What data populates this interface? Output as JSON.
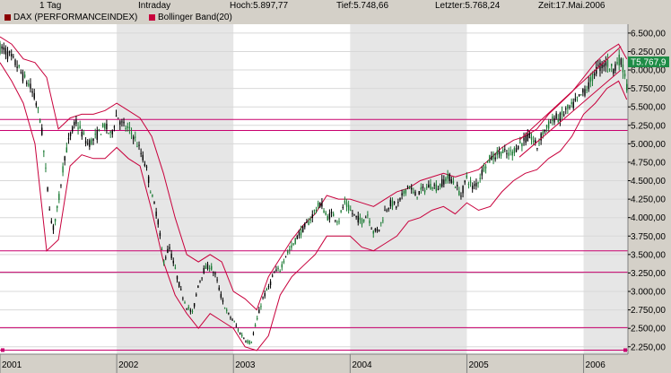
{
  "header": {
    "interval": "1 Tag",
    "mode": "Intraday",
    "high": "Hoch:5.897,77",
    "low": "Tief:5.748,66",
    "last": "Letzter:5.768,24",
    "time": "Zeit:17.Mai.2006"
  },
  "legend": {
    "series1": "DAX (PERFORMANCEINDEX)",
    "series1_color": "#8b0000",
    "series2": "Bollinger Band(20)",
    "series2_color": "#c8003c"
  },
  "price_tag": "T5.767,9",
  "colors": {
    "plot_bg": "#ffffff",
    "band_bg": "#e6e6e6",
    "candle_up": "#1a7a33",
    "candle_down": "#000000",
    "bollinger": "#c8003c",
    "support_line": "#c8006e",
    "price_tag_bg": "#1e8c46"
  },
  "chart_data": {
    "type": "line",
    "title": "",
    "y_ticks": [
      "6.500,00",
      "6.250,00",
      "6.000,00",
      "5.750,00",
      "5.500,00",
      "5.250,00",
      "5.000,00",
      "4.750,00",
      "4.500,00",
      "4.250,00",
      "4.000,00",
      "3.750,00",
      "3.500,00",
      "3.250,00",
      "3.000,00",
      "2.750,00",
      "2.500,00",
      "2.250,00"
    ],
    "y_tick_values": [
      6500,
      6250,
      6000,
      5750,
      5500,
      5250,
      5000,
      4750,
      4500,
      4250,
      4000,
      3750,
      3500,
      3250,
      3000,
      2750,
      2500,
      2250
    ],
    "ylim": [
      2150,
      6620
    ],
    "x_ticks": [
      "2001",
      "2002",
      "2003",
      "2004",
      "2005",
      "2006"
    ],
    "x_tick_values": [
      2001.0,
      2002.0,
      2003.0,
      2004.0,
      2005.0,
      2006.0
    ],
    "xlim": [
      2001.0,
      2006.38
    ],
    "shaded_years": [
      [
        2002.0,
        2003.0
      ],
      [
        2004.0,
        2005.0
      ],
      [
        2006.0,
        2006.38
      ]
    ],
    "horizontal_lines": [
      5330,
      5180,
      3550,
      3260,
      2510,
      2205
    ],
    "trend_lines": [
      {
        "x": [
          2005.45,
          2006.32
        ],
        "y": [
          5050,
          6320
        ]
      },
      {
        "x": [
          2005.45,
          2006.32
        ],
        "y": [
          4820,
          6000
        ]
      }
    ],
    "series": [
      {
        "name": "DAX (PERFORMANCEINDEX)",
        "x": [
          2001.0,
          2001.05,
          2001.1,
          2001.15,
          2001.2,
          2001.25,
          2001.3,
          2001.35,
          2001.4,
          2001.45,
          2001.5,
          2001.55,
          2001.6,
          2001.65,
          2001.7,
          2001.75,
          2001.8,
          2001.85,
          2001.9,
          2001.95,
          2002.0,
          2002.05,
          2002.1,
          2002.15,
          2002.2,
          2002.25,
          2002.3,
          2002.35,
          2002.4,
          2002.45,
          2002.5,
          2002.55,
          2002.6,
          2002.65,
          2002.7,
          2002.75,
          2002.8,
          2002.85,
          2002.9,
          2002.95,
          2003.0,
          2003.05,
          2003.1,
          2003.15,
          2003.2,
          2003.25,
          2003.3,
          2003.35,
          2003.4,
          2003.45,
          2003.5,
          2003.55,
          2003.6,
          2003.65,
          2003.7,
          2003.75,
          2003.8,
          2003.85,
          2003.9,
          2003.95,
          2004.0,
          2004.05,
          2004.1,
          2004.15,
          2004.2,
          2004.25,
          2004.3,
          2004.35,
          2004.4,
          2004.45,
          2004.5,
          2004.55,
          2004.6,
          2004.65,
          2004.7,
          2004.75,
          2004.8,
          2004.85,
          2004.9,
          2004.95,
          2005.0,
          2005.05,
          2005.1,
          2005.15,
          2005.2,
          2005.25,
          2005.3,
          2005.35,
          2005.4,
          2005.45,
          2005.5,
          2005.55,
          2005.6,
          2005.65,
          2005.7,
          2005.75,
          2005.8,
          2005.85,
          2005.9,
          2005.95,
          2006.0,
          2006.05,
          2006.1,
          2006.15,
          2006.2,
          2006.25,
          2006.3,
          2006.35,
          2006.37
        ],
        "y": [
          6300,
          6250,
          6150,
          6050,
          5900,
          5800,
          5600,
          5300,
          4500,
          3800,
          4200,
          4800,
          5100,
          5300,
          5150,
          5000,
          5050,
          5150,
          5250,
          5100,
          5400,
          5250,
          5200,
          5100,
          4900,
          4700,
          4300,
          4000,
          3400,
          3600,
          3300,
          3000,
          2800,
          2700,
          3100,
          3300,
          3350,
          3200,
          2900,
          2700,
          2600,
          2450,
          2350,
          2300,
          2600,
          2900,
          3050,
          3250,
          3300,
          3500,
          3600,
          3750,
          3850,
          3950,
          4100,
          4200,
          4000,
          4050,
          3950,
          4200,
          4100,
          4000,
          3950,
          4050,
          3800,
          3850,
          4100,
          4200,
          4150,
          4300,
          4450,
          4300,
          4350,
          4400,
          4450,
          4400,
          4500,
          4550,
          4450,
          4300,
          4550,
          4400,
          4500,
          4700,
          4800,
          4850,
          4900,
          4850,
          4900,
          5000,
          5050,
          5100,
          4950,
          5150,
          5250,
          5350,
          5350,
          5450,
          5500,
          5600,
          5700,
          5800,
          6000,
          6050,
          6100,
          6000,
          6150,
          6000,
          5767
        ]
      },
      {
        "name": "Bollinger Band(20)",
        "x": [
          2001.0,
          2001.1,
          2001.2,
          2001.3,
          2001.4,
          2001.5,
          2001.6,
          2001.7,
          2001.8,
          2001.9,
          2002.0,
          2002.1,
          2002.2,
          2002.3,
          2002.4,
          2002.5,
          2002.6,
          2002.7,
          2002.8,
          2002.9,
          2003.0,
          2003.1,
          2003.2,
          2003.3,
          2003.4,
          2003.5,
          2003.6,
          2003.7,
          2003.8,
          2003.9,
          2004.0,
          2004.1,
          2004.2,
          2004.3,
          2004.4,
          2004.5,
          2004.6,
          2004.7,
          2004.8,
          2004.9,
          2005.0,
          2005.1,
          2005.2,
          2005.3,
          2005.4,
          2005.5,
          2005.6,
          2005.7,
          2005.8,
          2005.9,
          2006.0,
          2006.1,
          2006.2,
          2006.3,
          2006.37
        ],
        "upper": [
          6450,
          6350,
          6150,
          6100,
          5900,
          5200,
          5350,
          5400,
          5400,
          5450,
          5550,
          5450,
          5350,
          5100,
          4600,
          4000,
          3500,
          3400,
          3500,
          3400,
          3000,
          2900,
          2750,
          3200,
          3450,
          3700,
          3900,
          4050,
          4300,
          4250,
          4250,
          4200,
          4150,
          4250,
          4350,
          4400,
          4500,
          4550,
          4600,
          4550,
          4600,
          4650,
          4800,
          4950,
          5050,
          5100,
          5200,
          5400,
          5550,
          5700,
          5900,
          6100,
          6250,
          6350,
          6150
        ],
        "lower": [
          6100,
          5850,
          5550,
          5000,
          3550,
          3700,
          4700,
          4850,
          4800,
          4800,
          4950,
          4800,
          4700,
          4100,
          3400,
          2950,
          2700,
          2500,
          2700,
          2600,
          2500,
          2250,
          2200,
          2400,
          2950,
          3200,
          3350,
          3500,
          3750,
          3750,
          3750,
          3600,
          3550,
          3650,
          3750,
          3950,
          4000,
          4100,
          4150,
          4050,
          4200,
          4100,
          4150,
          4350,
          4500,
          4600,
          4650,
          4800,
          4900,
          5100,
          5400,
          5550,
          5750,
          5850,
          5600
        ]
      }
    ]
  }
}
